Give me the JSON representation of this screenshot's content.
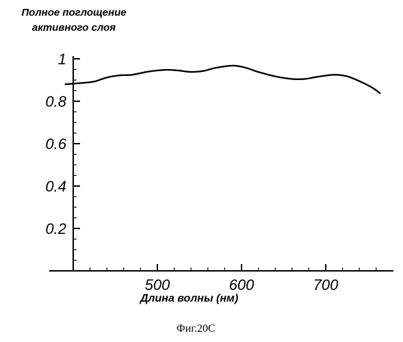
{
  "chart_data": {
    "type": "line",
    "ylabel": "Полное поглощение активного слоя",
    "xlabel": "Длина волны (нм)",
    "caption": "Фиг.20C",
    "xlim": [
      390,
      770
    ],
    "ylim": [
      0,
      1.0
    ],
    "x_ticks": [
      500,
      600,
      700
    ],
    "y_ticks": [
      0.2,
      0.4,
      0.6,
      0.8,
      1
    ],
    "y_tick_labels": [
      "0.2",
      "0.4",
      "0.6",
      "0.8",
      "1"
    ],
    "grid": false,
    "series": [
      {
        "x": [
          390,
          400,
          410,
          425,
          440,
          455,
          470,
          490,
          510,
          525,
          540,
          555,
          570,
          590,
          605,
          620,
          640,
          660,
          675,
          690,
          710,
          725,
          740,
          755,
          765
        ],
        "values": [
          0.88,
          0.883,
          0.886,
          0.893,
          0.912,
          0.922,
          0.925,
          0.94,
          0.948,
          0.945,
          0.938,
          0.943,
          0.958,
          0.968,
          0.958,
          0.938,
          0.917,
          0.905,
          0.905,
          0.915,
          0.925,
          0.918,
          0.895,
          0.865,
          0.836
        ]
      }
    ]
  }
}
